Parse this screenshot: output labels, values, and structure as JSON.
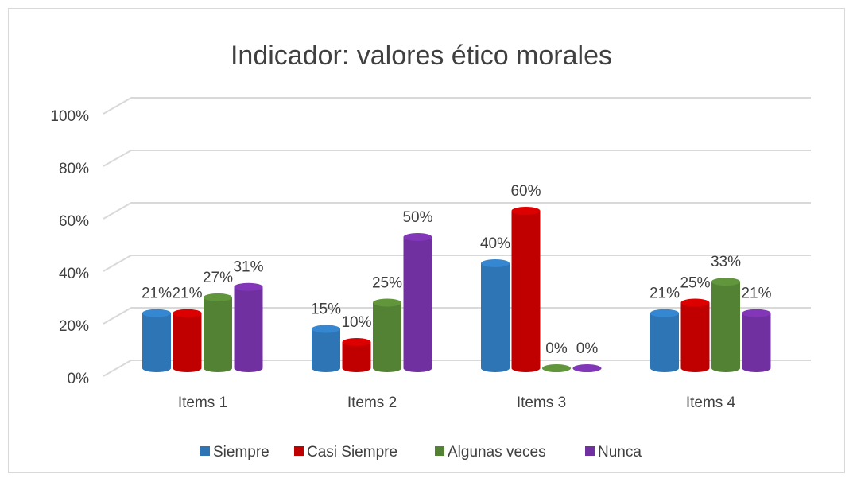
{
  "chart_data": {
    "type": "bar",
    "title": "Indicador: valores ético morales",
    "categories": [
      "Items 1",
      "Items 2",
      "Items 3",
      "Items 4"
    ],
    "series": [
      {
        "name": "Siempre",
        "color": "#2e75b6",
        "values": [
          21,
          15,
          40,
          21
        ],
        "value_labels": [
          "21%",
          "15%",
          "40%",
          "21%"
        ]
      },
      {
        "name": "Casi Siempre",
        "color": "#c00000",
        "values": [
          21,
          10,
          60,
          25
        ],
        "value_labels": [
          "21%",
          "10%",
          "60%",
          "25%"
        ]
      },
      {
        "name": "Algunas veces",
        "color": "#548235",
        "values": [
          27,
          25,
          0,
          33
        ],
        "value_labels": [
          "27%",
          "25%",
          "0%",
          "33%"
        ]
      },
      {
        "name": "Nunca",
        "color": "#7030a0",
        "values": [
          31,
          50,
          0,
          21
        ],
        "value_labels": [
          "31%",
          "50%",
          "0%",
          "21%"
        ]
      }
    ],
    "ylim": [
      0,
      100
    ],
    "yticks": [
      {
        "value": 0,
        "label": "0%"
      },
      {
        "value": 20,
        "label": "20%"
      },
      {
        "value": 40,
        "label": "40%"
      },
      {
        "value": 60,
        "label": "60%"
      },
      {
        "value": 80,
        "label": "80%"
      },
      {
        "value": 100,
        "label": "100%"
      }
    ],
    "grid": true,
    "legend": "bottom"
  }
}
